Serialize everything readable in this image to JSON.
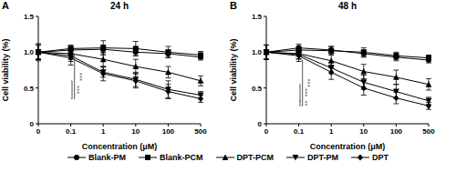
{
  "chart_data": [
    {
      "type": "line",
      "panel": "A",
      "title": "24 h",
      "x_label": "Concentration (μM)",
      "y_label": "Cell viability (%)",
      "categories": [
        "0",
        "0.1",
        "1",
        "10",
        "100",
        "500"
      ],
      "ylim": [
        0,
        1.5
      ],
      "yticks": [
        0,
        0.5,
        {
          "value": 1,
          "label": "1.0"
        },
        1.5
      ],
      "grid": false,
      "legend": "bottom",
      "series": [
        {
          "name": "Blank-PM",
          "color": "#000000",
          "marker": "circle",
          "values": [
            1.0,
            1.03,
            1.04,
            1.0,
            0.98,
            0.93
          ],
          "errors": [
            0.12,
            0.05,
            0.06,
            0.05,
            0.05,
            0.04
          ]
        },
        {
          "name": "Blank-PCM",
          "color": "#000000",
          "marker": "square",
          "values": [
            1.0,
            1.05,
            1.06,
            1.05,
            1.0,
            0.96
          ],
          "errors": [
            0.1,
            0.05,
            0.1,
            0.1,
            0.08,
            0.05
          ]
        },
        {
          "name": "DPT-PCM",
          "color": "#000000",
          "marker": "triangle-up",
          "values": [
            1.0,
            0.98,
            0.9,
            0.8,
            0.72,
            0.6
          ],
          "errors": [
            0.1,
            0.08,
            0.1,
            0.1,
            0.08,
            0.07
          ]
        },
        {
          "name": "DPT-PM",
          "color": "#000000",
          "marker": "triangle-down",
          "values": [
            1.0,
            0.95,
            0.72,
            0.62,
            0.48,
            0.4
          ],
          "errors": [
            0.1,
            0.08,
            0.07,
            0.1,
            0.12,
            0.05
          ]
        },
        {
          "name": "DPT",
          "color": "#000000",
          "marker": "diamond",
          "values": [
            1.0,
            0.92,
            0.7,
            0.6,
            0.45,
            0.35
          ],
          "errors": [
            0.1,
            0.1,
            0.1,
            0.1,
            0.1,
            0.05
          ]
        }
      ],
      "annotations": [
        {
          "text": "***",
          "between": [
            "DPT-PCM",
            "DPT"
          ]
        },
        {
          "text": "***",
          "between": [
            "Blank-PCM",
            "DPT"
          ]
        }
      ]
    },
    {
      "type": "line",
      "panel": "B",
      "title": "48 h",
      "x_label": "Concentration (μM)",
      "y_label": "Cell viability (%)",
      "categories": [
        "0",
        "0.1",
        "1",
        "10",
        "100",
        "500"
      ],
      "ylim": [
        0,
        1.5
      ],
      "yticks": [
        0,
        0.5,
        {
          "value": 1,
          "label": "1.0"
        },
        1.5
      ],
      "grid": false,
      "legend": "bottom",
      "series": [
        {
          "name": "Blank-PM",
          "color": "#000000",
          "marker": "circle",
          "values": [
            1.0,
            1.06,
            1.03,
            0.98,
            0.93,
            0.89
          ],
          "errors": [
            0.1,
            0.05,
            0.05,
            0.05,
            0.05,
            0.04
          ]
        },
        {
          "name": "Blank-PCM",
          "color": "#000000",
          "marker": "square",
          "values": [
            1.0,
            1.03,
            1.02,
            1.0,
            0.95,
            0.92
          ],
          "errors": [
            0.1,
            0.05,
            0.06,
            0.06,
            0.05,
            0.04
          ]
        },
        {
          "name": "DPT-PCM",
          "color": "#000000",
          "marker": "triangle-up",
          "values": [
            1.0,
            0.98,
            0.88,
            0.73,
            0.65,
            0.55
          ],
          "errors": [
            0.1,
            0.08,
            0.1,
            0.1,
            0.1,
            0.08
          ]
        },
        {
          "name": "DPT-PM",
          "color": "#000000",
          "marker": "triangle-down",
          "values": [
            1.0,
            0.97,
            0.78,
            0.58,
            0.45,
            0.32
          ],
          "errors": [
            0.1,
            0.06,
            0.08,
            0.1,
            0.1,
            0.05
          ]
        },
        {
          "name": "DPT",
          "color": "#000000",
          "marker": "diamond",
          "values": [
            1.0,
            0.95,
            0.72,
            0.5,
            0.36,
            0.25
          ],
          "errors": [
            0.1,
            0.08,
            0.1,
            0.1,
            0.08,
            0.05
          ]
        }
      ],
      "annotations": [
        {
          "text": "**",
          "between": [
            "DPT-PM",
            "DPT"
          ]
        },
        {
          "text": "***",
          "between": [
            "DPT-PCM",
            "DPT-PM"
          ]
        },
        {
          "text": "***",
          "between": [
            "Blank-PM",
            "DPT"
          ]
        }
      ]
    }
  ]
}
